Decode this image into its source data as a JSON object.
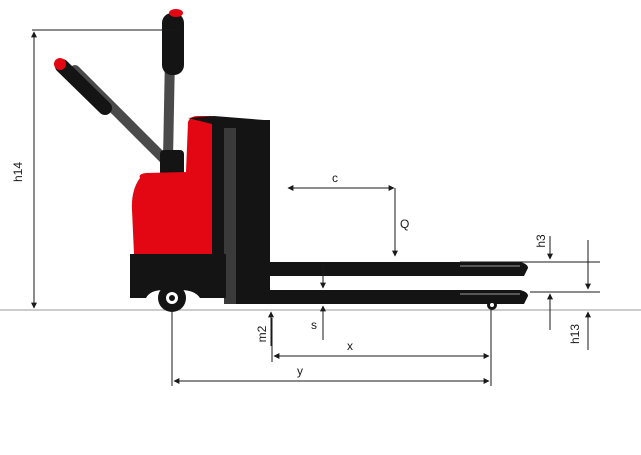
{
  "diagram": {
    "labels": {
      "h14": "h14",
      "c": "c",
      "Q": "Q",
      "h3": "h3",
      "s": "s",
      "m2": "m2",
      "x": "x",
      "y": "y",
      "h13": "h13"
    },
    "colors": {
      "body_red": "#e30613",
      "body_black": "#141414",
      "handle_grey": "#4a4a4a",
      "dimension_line": "#1a1a1a",
      "ground_line": "#9a9a9a"
    }
  }
}
